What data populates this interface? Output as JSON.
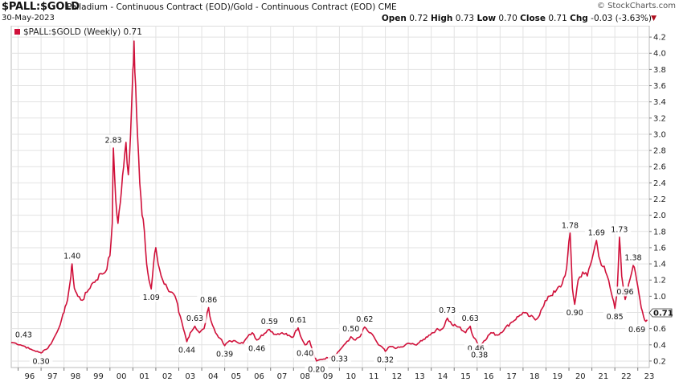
{
  "header": {
    "symbol": "$PALL:$GOLD",
    "description": "Palladium - Continuous Contract (EOD)/Gold - Continuous Contract (EOD)",
    "exchange": "CME",
    "date": "30-May-2023",
    "brand": "© StockCharts.com",
    "open_label": "Open",
    "open": "0.72",
    "high_label": "High",
    "high": "0.73",
    "low_label": "Low",
    "low": "0.70",
    "close_label": "Close",
    "close": "0.71",
    "chg_label": "Chg",
    "chg": "-0.03 (-3.63%)"
  },
  "chart_data": {
    "type": "line",
    "legend": "$PALL:$GOLD (Weekly) 0.71",
    "current_value_label": "0.71",
    "series_color": "#d0103a",
    "x_tick_labels": [
      "96",
      "97",
      "98",
      "99",
      "00",
      "01",
      "02",
      "03",
      "04",
      "05",
      "06",
      "07",
      "08",
      "09",
      "10",
      "11",
      "12",
      "13",
      "14",
      "15",
      "16",
      "17",
      "18",
      "19",
      "20",
      "21",
      "22",
      "23"
    ],
    "y_tick_labels": [
      "0.2",
      "0.4",
      "0.6",
      "0.8",
      "1.0",
      "1.2",
      "1.4",
      "1.6",
      "1.8",
      "2.0",
      "2.2",
      "2.4",
      "2.6",
      "2.8",
      "3.0",
      "3.2",
      "3.4",
      "3.6",
      "3.8",
      "4.0",
      "4.2"
    ],
    "x_range": [
      1995.7,
      2023.5
    ],
    "y_range": [
      0.12,
      4.34
    ],
    "points": [
      [
        1995.7,
        0.43
      ],
      [
        1995.9,
        0.42
      ],
      [
        1996.1,
        0.4
      ],
      [
        1996.3,
        0.38
      ],
      [
        1996.5,
        0.35
      ],
      [
        1996.7,
        0.33
      ],
      [
        1996.9,
        0.31
      ],
      [
        1997.0,
        0.3
      ],
      [
        1997.1,
        0.33
      ],
      [
        1997.3,
        0.36
      ],
      [
        1997.5,
        0.45
      ],
      [
        1997.7,
        0.56
      ],
      [
        1997.9,
        0.72
      ],
      [
        1998.0,
        0.8
      ],
      [
        1998.1,
        0.9
      ],
      [
        1998.2,
        1.05
      ],
      [
        1998.3,
        1.25
      ],
      [
        1998.35,
        1.4
      ],
      [
        1998.45,
        1.1
      ],
      [
        1998.6,
        1.0
      ],
      [
        1998.8,
        0.95
      ],
      [
        1999.0,
        1.05
      ],
      [
        1999.2,
        1.15
      ],
      [
        1999.4,
        1.2
      ],
      [
        1999.6,
        1.28
      ],
      [
        1999.8,
        1.3
      ],
      [
        2000.0,
        1.5
      ],
      [
        2000.1,
        1.9
      ],
      [
        2000.15,
        2.83
      ],
      [
        2000.25,
        2.2
      ],
      [
        2000.35,
        1.9
      ],
      [
        2000.5,
        2.3
      ],
      [
        2000.6,
        2.6
      ],
      [
        2000.7,
        2.9
      ],
      [
        2000.8,
        2.5
      ],
      [
        2000.9,
        3.0
      ],
      [
        2001.0,
        3.8
      ],
      [
        2001.05,
        4.15
      ],
      [
        2001.12,
        3.6
      ],
      [
        2001.2,
        3.0
      ],
      [
        2001.3,
        2.4
      ],
      [
        2001.4,
        2.0
      ],
      [
        2001.5,
        1.8
      ],
      [
        2001.6,
        1.4
      ],
      [
        2001.7,
        1.2
      ],
      [
        2001.8,
        1.09
      ],
      [
        2001.9,
        1.4
      ],
      [
        2002.0,
        1.6
      ],
      [
        2002.1,
        1.4
      ],
      [
        2002.3,
        1.2
      ],
      [
        2002.5,
        1.1
      ],
      [
        2002.7,
        1.05
      ],
      [
        2002.9,
        0.95
      ],
      [
        2003.0,
        0.8
      ],
      [
        2003.2,
        0.6
      ],
      [
        2003.35,
        0.44
      ],
      [
        2003.5,
        0.55
      ],
      [
        2003.7,
        0.63
      ],
      [
        2003.9,
        0.55
      ],
      [
        2004.1,
        0.6
      ],
      [
        2004.3,
        0.86
      ],
      [
        2004.4,
        0.7
      ],
      [
        2004.6,
        0.55
      ],
      [
        2004.8,
        0.48
      ],
      [
        2005.0,
        0.39
      ],
      [
        2005.2,
        0.45
      ],
      [
        2005.5,
        0.44
      ],
      [
        2005.8,
        0.42
      ],
      [
        2006.0,
        0.5
      ],
      [
        2006.2,
        0.55
      ],
      [
        2006.4,
        0.46
      ],
      [
        2006.6,
        0.52
      ],
      [
        2006.8,
        0.55
      ],
      [
        2006.95,
        0.59
      ],
      [
        2007.2,
        0.53
      ],
      [
        2007.5,
        0.55
      ],
      [
        2007.8,
        0.52
      ],
      [
        2008.0,
        0.5
      ],
      [
        2008.1,
        0.58
      ],
      [
        2008.2,
        0.61
      ],
      [
        2008.35,
        0.48
      ],
      [
        2008.5,
        0.4
      ],
      [
        2008.7,
        0.45
      ],
      [
        2008.85,
        0.3
      ],
      [
        2009.0,
        0.2
      ],
      [
        2009.2,
        0.22
      ],
      [
        2009.5,
        0.24
      ],
      [
        2009.8,
        0.27
      ],
      [
        2010.0,
        0.33
      ],
      [
        2010.2,
        0.4
      ],
      [
        2010.4,
        0.45
      ],
      [
        2010.5,
        0.5
      ],
      [
        2010.7,
        0.46
      ],
      [
        2010.9,
        0.5
      ],
      [
        2011.1,
        0.62
      ],
      [
        2011.3,
        0.55
      ],
      [
        2011.5,
        0.5
      ],
      [
        2011.7,
        0.4
      ],
      [
        2011.9,
        0.36
      ],
      [
        2012.0,
        0.32
      ],
      [
        2012.2,
        0.38
      ],
      [
        2012.5,
        0.36
      ],
      [
        2012.8,
        0.38
      ],
      [
        2013.0,
        0.42
      ],
      [
        2013.3,
        0.4
      ],
      [
        2013.6,
        0.45
      ],
      [
        2013.9,
        0.52
      ],
      [
        2014.2,
        0.58
      ],
      [
        2014.5,
        0.6
      ],
      [
        2014.7,
        0.73
      ],
      [
        2014.9,
        0.65
      ],
      [
        2015.2,
        0.62
      ],
      [
        2015.5,
        0.55
      ],
      [
        2015.7,
        0.63
      ],
      [
        2015.8,
        0.52
      ],
      [
        2015.95,
        0.46
      ],
      [
        2016.1,
        0.38
      ],
      [
        2016.3,
        0.45
      ],
      [
        2016.6,
        0.55
      ],
      [
        2016.9,
        0.52
      ],
      [
        2017.2,
        0.6
      ],
      [
        2017.5,
        0.68
      ],
      [
        2017.8,
        0.75
      ],
      [
        2018.0,
        0.8
      ],
      [
        2018.3,
        0.75
      ],
      [
        2018.6,
        0.72
      ],
      [
        2018.9,
        0.88
      ],
      [
        2019.1,
        1.0
      ],
      [
        2019.4,
        1.05
      ],
      [
        2019.7,
        1.15
      ],
      [
        2019.9,
        1.35
      ],
      [
        2020.05,
        1.78
      ],
      [
        2020.15,
        1.1
      ],
      [
        2020.25,
        0.9
      ],
      [
        2020.4,
        1.2
      ],
      [
        2020.6,
        1.3
      ],
      [
        2020.8,
        1.25
      ],
      [
        2021.0,
        1.45
      ],
      [
        2021.2,
        1.69
      ],
      [
        2021.35,
        1.45
      ],
      [
        2021.6,
        1.3
      ],
      [
        2021.8,
        1.1
      ],
      [
        2021.9,
        0.98
      ],
      [
        2022.0,
        0.85
      ],
      [
        2022.1,
        1.05
      ],
      [
        2022.2,
        1.73
      ],
      [
        2022.3,
        1.25
      ],
      [
        2022.45,
        0.96
      ],
      [
        2022.6,
        1.15
      ],
      [
        2022.8,
        1.38
      ],
      [
        2022.95,
        1.2
      ],
      [
        2023.1,
        0.95
      ],
      [
        2023.25,
        0.75
      ],
      [
        2023.35,
        0.69
      ],
      [
        2023.41,
        0.71
      ]
    ],
    "annotations": [
      {
        "x": 1995.7,
        "y": 0.43,
        "label": "0.43",
        "pos": "above"
      },
      {
        "x": 1997.0,
        "y": 0.3,
        "label": "0.30",
        "pos": "below"
      },
      {
        "x": 1998.35,
        "y": 1.4,
        "label": "1.40",
        "pos": "above"
      },
      {
        "x": 2000.15,
        "y": 2.83,
        "label": "2.83",
        "pos": "above"
      },
      {
        "x": 2001.8,
        "y": 1.09,
        "label": "1.09",
        "pos": "below"
      },
      {
        "x": 2003.35,
        "y": 0.44,
        "label": "0.44",
        "pos": "below"
      },
      {
        "x": 2003.7,
        "y": 0.63,
        "label": "0.63",
        "pos": "above"
      },
      {
        "x": 2004.3,
        "y": 0.86,
        "label": "0.86",
        "pos": "above"
      },
      {
        "x": 2005.0,
        "y": 0.39,
        "label": "0.39",
        "pos": "below"
      },
      {
        "x": 2006.4,
        "y": 0.46,
        "label": "0.46",
        "pos": "below"
      },
      {
        "x": 2006.95,
        "y": 0.59,
        "label": "0.59",
        "pos": "above"
      },
      {
        "x": 2008.2,
        "y": 0.61,
        "label": "0.61",
        "pos": "above"
      },
      {
        "x": 2008.5,
        "y": 0.4,
        "label": "0.40",
        "pos": "below"
      },
      {
        "x": 2009.0,
        "y": 0.2,
        "label": "0.20",
        "pos": "below"
      },
      {
        "x": 2010.0,
        "y": 0.33,
        "label": "0.33",
        "pos": "below"
      },
      {
        "x": 2010.5,
        "y": 0.5,
        "label": "0.50",
        "pos": "above"
      },
      {
        "x": 2011.1,
        "y": 0.62,
        "label": "0.62",
        "pos": "above"
      },
      {
        "x": 2012.0,
        "y": 0.32,
        "label": "0.32",
        "pos": "below"
      },
      {
        "x": 2014.7,
        "y": 0.73,
        "label": "0.73",
        "pos": "above"
      },
      {
        "x": 2015.7,
        "y": 0.63,
        "label": "0.63",
        "pos": "above"
      },
      {
        "x": 2015.95,
        "y": 0.46,
        "label": "0.46",
        "pos": "below"
      },
      {
        "x": 2016.1,
        "y": 0.38,
        "label": "0.38",
        "pos": "below"
      },
      {
        "x": 2020.05,
        "y": 1.78,
        "label": "1.78",
        "pos": "above"
      },
      {
        "x": 2020.25,
        "y": 0.9,
        "label": "0.90",
        "pos": "below"
      },
      {
        "x": 2021.2,
        "y": 1.69,
        "label": "1.69",
        "pos": "above"
      },
      {
        "x": 2022.0,
        "y": 0.85,
        "label": "0.85",
        "pos": "below"
      },
      {
        "x": 2022.2,
        "y": 1.73,
        "label": "1.73",
        "pos": "above"
      },
      {
        "x": 2022.45,
        "y": 0.96,
        "label": "0.96",
        "pos": "above"
      },
      {
        "x": 2022.8,
        "y": 1.38,
        "label": "1.38",
        "pos": "above"
      },
      {
        "x": 2023.35,
        "y": 0.69,
        "label": "0.69",
        "pos": "below"
      }
    ]
  }
}
